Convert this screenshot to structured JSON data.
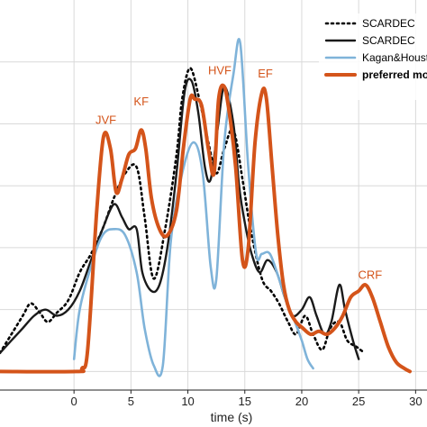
{
  "chart_data": {
    "type": "line",
    "title": "",
    "xlabel": "time (s)",
    "ylabel": "",
    "xlim": [
      -6.5,
      31
    ],
    "ylim": [
      -0.3,
      6
    ],
    "x_ticks": [
      0,
      5,
      10,
      15,
      20,
      25,
      30
    ],
    "x_tick_labels": [
      "0",
      "5",
      "10",
      "15",
      "20",
      "25",
      "30"
    ],
    "grid": true,
    "legend_position": "top-right",
    "series": [
      {
        "name": "SCARDEC",
        "color": "#000000",
        "style": "dotted",
        "x": [
          -6.5,
          -5.5,
          -4.5,
          -3.8,
          -3,
          -2.3,
          -1.5,
          -0.5,
          0.5,
          1.5,
          2.5,
          3.5,
          4.5,
          5.5,
          6.2,
          7,
          8,
          9,
          9.5,
          10.2,
          11,
          11.8,
          12.5,
          13.2,
          14,
          14.8,
          15.5,
          16.5,
          17.3,
          18,
          18.8,
          19.5,
          20.3,
          21,
          21.8,
          22.5,
          23.3,
          24,
          24.8,
          25.5
        ],
        "y": [
          0.3,
          0.6,
          0.9,
          1.1,
          0.95,
          0.8,
          0.95,
          1.15,
          1.6,
          1.9,
          2.3,
          2.8,
          3.2,
          3.3,
          2.5,
          1.5,
          2.3,
          3.5,
          4.4,
          4.9,
          4.4,
          3.7,
          3.2,
          3.6,
          3.9,
          3.1,
          2.3,
          1.5,
          1.3,
          1.1,
          0.8,
          0.6,
          0.9,
          0.6,
          0.35,
          0.7,
          0.8,
          0.5,
          0.4,
          0.3
        ]
      },
      {
        "name": "SCARDEC",
        "color": "#1a1a1a",
        "style": "solid",
        "x": [
          -6.5,
          -5.5,
          -4.5,
          -3.5,
          -2.5,
          -1.5,
          -0.5,
          0.5,
          1.5,
          2.5,
          3.5,
          4.2,
          4.8,
          5.5,
          6,
          6.8,
          7.5,
          8.2,
          9,
          9.7,
          10.3,
          10.9,
          11.5,
          12,
          12.6,
          13.2,
          14,
          14.5,
          15,
          15.6,
          16.3,
          17,
          17.8,
          18.5,
          19.2,
          20,
          20.7,
          21.3,
          22,
          22.6,
          23.3,
          23.8,
          24.5,
          25
        ],
        "y": [
          0.3,
          0.5,
          0.7,
          0.9,
          1.0,
          0.9,
          1.0,
          1.3,
          1.8,
          2.3,
          2.7,
          2.5,
          2.3,
          2.3,
          1.6,
          1.3,
          1.4,
          2.0,
          3.2,
          4.5,
          4.7,
          4.2,
          3.3,
          3.1,
          3.9,
          4.6,
          4.0,
          3.0,
          2.4,
          1.9,
          1.6,
          1.8,
          1.6,
          1.2,
          0.9,
          1.0,
          1.2,
          0.9,
          0.6,
          0.8,
          1.4,
          1.0,
          0.5,
          0.2
        ]
      },
      {
        "name": "Kagan&Houston",
        "color": "#7fb3d9",
        "style": "solid",
        "x": [
          0,
          0.5,
          1.5,
          2.5,
          3.5,
          4.5,
          5.5,
          6.2,
          7,
          7.8,
          8.5,
          9.5,
          10.5,
          11.3,
          12,
          12.5,
          13.2,
          14,
          14.6,
          15.3,
          16,
          16.5,
          17.2,
          18,
          18.7,
          19.4,
          20,
          20.5,
          21
        ],
        "y": [
          0.2,
          1.0,
          1.7,
          2.2,
          2.3,
          2.2,
          1.6,
          0.7,
          0.1,
          0.1,
          2.1,
          3.2,
          3.7,
          3.2,
          1.7,
          1.5,
          3.7,
          4.8,
          5.3,
          3.3,
          1.9,
          1.9,
          1.9,
          1.5,
          1.1,
          0.8,
          0.5,
          0.2,
          0.05
        ]
      },
      {
        "name": "preferred model",
        "color": "#d4541a",
        "style": "solid",
        "x": [
          -6.5,
          0.2,
          0.7,
          1.2,
          2.0,
          2.6,
          3.2,
          3.7,
          4.2,
          4.8,
          5.4,
          5.9,
          6.3,
          6.8,
          7.5,
          8.2,
          9,
          9.6,
          10.2,
          10.6,
          11.2,
          11.8,
          12.3,
          12.7,
          13.2,
          13.7,
          14.2,
          14.8,
          15.3,
          15.9,
          16.5,
          16.9,
          17.4,
          17.9,
          18.4,
          18.9,
          19.5,
          20.1,
          20.8,
          21.5,
          22.2,
          22.9,
          23.6,
          24.3,
          25,
          25.6,
          26.2,
          26.9,
          27.6,
          28.3,
          29,
          29.5
        ],
        "y": [
          0,
          0,
          0.05,
          0.35,
          2.6,
          3.8,
          3.6,
          2.9,
          3.1,
          3.5,
          3.6,
          3.9,
          3.6,
          2.8,
          2.3,
          2.2,
          2.6,
          3.6,
          4.4,
          4.4,
          4.3,
          3.6,
          3.2,
          4.4,
          4.6,
          4.1,
          3.3,
          1.8,
          2.0,
          3.7,
          4.5,
          4.4,
          3.3,
          2.2,
          1.4,
          1.0,
          0.8,
          0.7,
          0.6,
          0.65,
          0.6,
          0.7,
          0.9,
          1.2,
          1.3,
          1.4,
          1.2,
          0.8,
          0.4,
          0.15,
          0.05,
          0
        ]
      }
    ],
    "annotations": [
      {
        "text": "JVF",
        "x": 2.8,
        "y": 4.0
      },
      {
        "text": "KF",
        "x": 5.9,
        "y": 4.3
      },
      {
        "text": "HVF",
        "x": 12.8,
        "y": 4.8
      },
      {
        "text": "EF",
        "x": 16.8,
        "y": 4.75
      },
      {
        "text": "CRF",
        "x": 26.0,
        "y": 1.5
      }
    ]
  }
}
